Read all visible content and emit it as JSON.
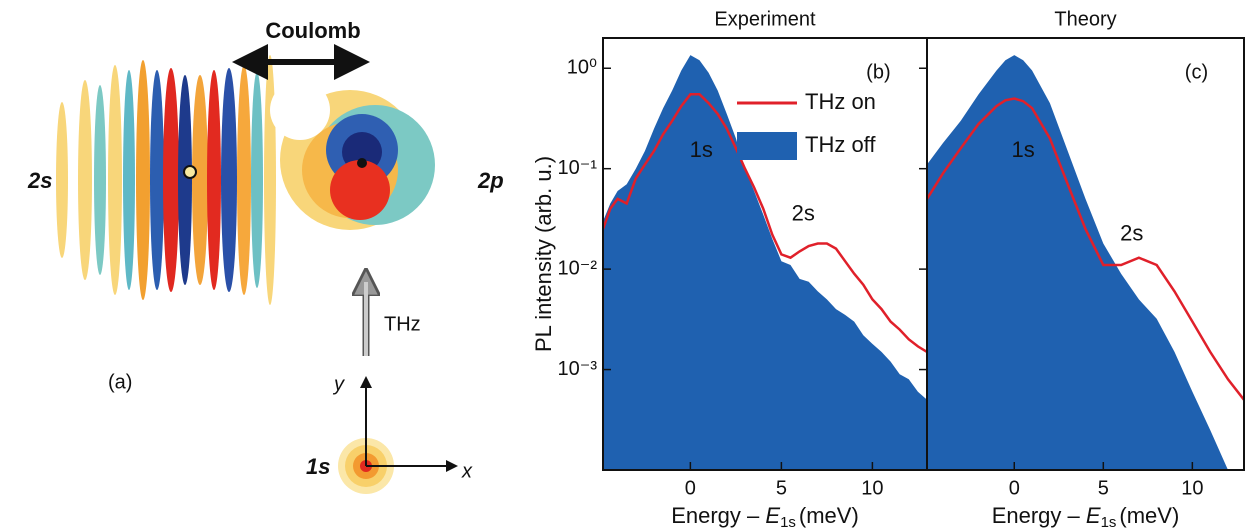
{
  "diagram": {
    "coulomb": "Coulomb",
    "state_2s": "2s",
    "state_2p": "2p",
    "thz": "THz",
    "panel": "(a)",
    "axis_y": "y",
    "axis_x": "x",
    "state_1s": "1s"
  },
  "chart_data": [
    {
      "type": "area_line",
      "title": "Experiment",
      "panel_label": "(b)",
      "y_label": "PL intensity (arb. u.)",
      "x_label": {
        "text": "Energy – ",
        "symbol": "E",
        "subscript": "1s",
        "unit": "(meV)"
      },
      "yscale": "log",
      "xlim": [
        -4.8,
        13
      ],
      "ylim": [
        0.0001,
        2
      ],
      "xticks": [
        0,
        5,
        10
      ],
      "yticks": [
        {
          "value": 1,
          "label": "10⁰"
        },
        {
          "value": 0.1,
          "label": "10⁻¹"
        },
        {
          "value": 0.01,
          "label": "10⁻²"
        },
        {
          "value": 0.001,
          "label": "10⁻³"
        }
      ],
      "legend": "upper right",
      "annotations": [
        "1s",
        "2s"
      ],
      "series": [
        {
          "name": "THz off",
          "style": "area",
          "color": "#1f61b0",
          "x": [
            -4.8,
            -4.4,
            -4,
            -3.5,
            -3,
            -2.5,
            -2,
            -1.5,
            -1,
            -0.5,
            0,
            0.5,
            1,
            1.5,
            2,
            2.5,
            3,
            3.5,
            4,
            4.5,
            5,
            5.5,
            6,
            6.5,
            7,
            7.5,
            8,
            8.5,
            9,
            9.5,
            10,
            10.5,
            11,
            11.5,
            12,
            12.5,
            13
          ],
          "values": [
            0.03,
            0.045,
            0.06,
            0.07,
            0.1,
            0.15,
            0.25,
            0.4,
            0.6,
            0.95,
            1.35,
            1.2,
            0.9,
            0.6,
            0.35,
            0.2,
            0.1,
            0.06,
            0.035,
            0.02,
            0.012,
            0.011,
            0.008,
            0.0075,
            0.006,
            0.005,
            0.004,
            0.0035,
            0.003,
            0.0022,
            0.0018,
            0.0015,
            0.0012,
            0.0009,
            0.0008,
            0.0006,
            0.0005
          ]
        },
        {
          "name": "THz on",
          "style": "line",
          "color": "#e0202a",
          "x": [
            -4.8,
            -4.4,
            -4,
            -3.5,
            -3,
            -2.5,
            -2,
            -1.5,
            -1,
            -0.5,
            0,
            0.5,
            1,
            1.5,
            2,
            2.5,
            3,
            3.5,
            4,
            4.5,
            5,
            5.5,
            6,
            6.5,
            7,
            7.5,
            8,
            8.5,
            9,
            9.5,
            10,
            10.5,
            11,
            11.5,
            12,
            12.5,
            13
          ],
          "values": [
            0.025,
            0.04,
            0.05,
            0.045,
            0.08,
            0.11,
            0.15,
            0.22,
            0.3,
            0.42,
            0.55,
            0.55,
            0.45,
            0.35,
            0.25,
            0.16,
            0.1,
            0.065,
            0.04,
            0.022,
            0.014,
            0.013,
            0.015,
            0.017,
            0.018,
            0.018,
            0.016,
            0.012,
            0.009,
            0.007,
            0.005,
            0.004,
            0.003,
            0.0025,
            0.002,
            0.0017,
            0.0015
          ]
        }
      ]
    },
    {
      "type": "area_line",
      "title": "Theory",
      "panel_label": "(c)",
      "x_label": {
        "text": "Energy – ",
        "symbol": "E",
        "subscript": "1s",
        "unit": "(meV)"
      },
      "yscale": "log",
      "xlim": [
        -4.9,
        12.9
      ],
      "ylim": [
        0.0001,
        2
      ],
      "xticks": [
        0,
        5,
        10
      ],
      "annotations": [
        "1s",
        "2s"
      ],
      "series": [
        {
          "name": "THz off",
          "style": "area",
          "color": "#1f61b0",
          "x": [
            -4.9,
            -4,
            -3,
            -2,
            -1,
            -0.5,
            0,
            0.5,
            1,
            2,
            3,
            4,
            5,
            6,
            7,
            8,
            9,
            10,
            11,
            12,
            12.5
          ],
          "values": [
            0.11,
            0.18,
            0.3,
            0.55,
            0.95,
            1.2,
            1.35,
            1.2,
            0.95,
            0.45,
            0.15,
            0.05,
            0.018,
            0.009,
            0.005,
            0.0032,
            0.0015,
            0.0006,
            0.00025,
            0.0001,
            0.0001
          ]
        },
        {
          "name": "THz on",
          "style": "line",
          "color": "#e0202a",
          "x": [
            -4.9,
            -4,
            -3,
            -2,
            -1,
            -0.5,
            0,
            0.5,
            1,
            2,
            3,
            4,
            5,
            6,
            7,
            8,
            9,
            10,
            11,
            12,
            12.9
          ],
          "values": [
            0.05,
            0.09,
            0.16,
            0.28,
            0.42,
            0.48,
            0.5,
            0.47,
            0.4,
            0.2,
            0.07,
            0.025,
            0.011,
            0.011,
            0.013,
            0.011,
            0.006,
            0.003,
            0.0015,
            0.0008,
            0.0005
          ]
        }
      ]
    }
  ]
}
